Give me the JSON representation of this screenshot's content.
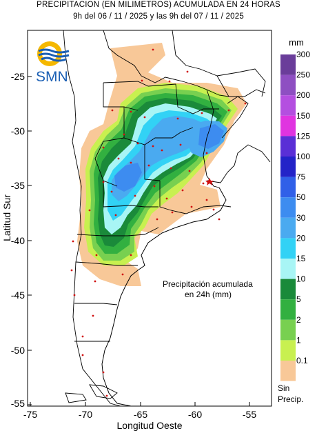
{
  "title": {
    "line1": "PRECIPITACION (EN MILIMETROS) ACUMULADA EN 24 HORAS",
    "line2": "9h del 06 / 11 / 2025  y las 9h del 07 / 11 / 2025"
  },
  "logo": {
    "text": "SMN",
    "icon": "smn-logo-icon"
  },
  "axes": {
    "xlabel": "Longitud Oeste",
    "ylabel": "Latitud Sur",
    "x_ticks": [
      "-75",
      "-70",
      "-65",
      "-60",
      "-55"
    ],
    "y_ticks": [
      "-25",
      "-30",
      "-35",
      "-40",
      "-45",
      "-50",
      "-55"
    ]
  },
  "annotation": {
    "line1": "Precipitación acumulada",
    "line2": "en 24h (mm)"
  },
  "legend": {
    "unit": "mm",
    "no_precip_line1": "Sin",
    "no_precip_line2": "Precip.",
    "bins": [
      {
        "label": "300",
        "color": "#6a3d9a"
      },
      {
        "label": "250",
        "color": "#8e4fc2"
      },
      {
        "label": "200",
        "color": "#b44fe0"
      },
      {
        "label": "150",
        "color": "#e034e0"
      },
      {
        "label": "125",
        "color": "#5a2fd6"
      },
      {
        "label": "100",
        "color": "#2323c8"
      },
      {
        "label": "75",
        "color": "#3060e8"
      },
      {
        "label": "50",
        "color": "#3d8cf0"
      },
      {
        "label": "30",
        "color": "#4aaaf0"
      },
      {
        "label": "20",
        "color": "#32d2f5"
      },
      {
        "label": "15",
        "color": "#a8f5f5"
      },
      {
        "label": "10",
        "color": "#1a8a3a"
      },
      {
        "label": "5",
        "color": "#32b040"
      },
      {
        "label": "2",
        "color": "#78d050"
      },
      {
        "label": "1",
        "color": "#c8f050"
      },
      {
        "label": "0.1",
        "color": "#f8c898"
      }
    ]
  },
  "colors": {
    "frame": "#000000",
    "station_marker": "#d01010",
    "border": "#000000"
  }
}
